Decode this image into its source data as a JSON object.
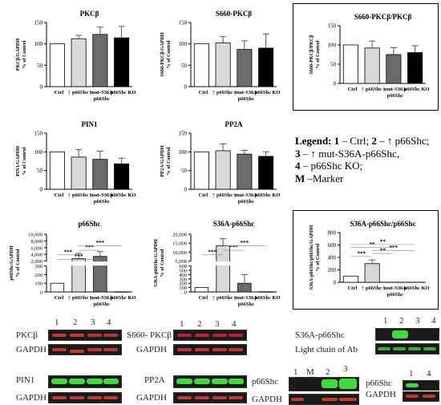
{
  "chart_data": [
    {
      "type": "bar",
      "title": "PKCβ",
      "ylabel": "PKCβ/GAPDH % of Control",
      "categories": [
        "Ctrl",
        "↑ p66Shc",
        "↑ mut-S36A p66Shc",
        "p66Shc KO"
      ],
      "values": [
        100,
        112,
        122,
        114
      ],
      "errors": [
        0,
        8,
        17,
        27
      ],
      "ylim": [
        0,
        150
      ],
      "yticks": [
        0,
        50,
        100,
        150
      ]
    },
    {
      "type": "bar",
      "title": "S660-PKCβ",
      "ylabel": "S660-PKCβ/GAPDH % of Control",
      "categories": [
        "Ctrl",
        "↑ p66Shc",
        "↑ mut-S36A p66Shc",
        "p66Shc KO"
      ],
      "values": [
        100,
        102,
        87,
        90
      ],
      "errors": [
        0,
        15,
        20,
        33
      ],
      "ylim": [
        0,
        150
      ],
      "yticks": [
        0,
        50,
        100,
        150
      ]
    },
    {
      "type": "bar",
      "title": "S660-PKCβ/PKCβ",
      "ylabel": "S660-PKCβ/PKCβ % of Control",
      "categories": [
        "Ctrl",
        "↑ p66Shc",
        "↑ mut-S36A p66Shc",
        "p66Shc KO"
      ],
      "values": [
        100,
        92,
        75,
        80
      ],
      "errors": [
        0,
        18,
        18,
        18
      ],
      "ylim": [
        0,
        150
      ],
      "yticks": [
        0,
        50,
        100,
        150
      ]
    },
    {
      "type": "bar",
      "title": "PIN1",
      "ylabel": "PIN1/GAPDH % of Control",
      "categories": [
        "Ctrl",
        "↑ p66Shc",
        "↑ mut-S36A p66Shc",
        "p66Shc KO"
      ],
      "values": [
        100,
        86,
        80,
        68
      ],
      "errors": [
        0,
        20,
        22,
        15
      ],
      "ylim": [
        0,
        150
      ],
      "yticks": [
        0,
        50,
        100,
        150
      ]
    },
    {
      "type": "bar",
      "title": "PP2A",
      "ylabel": "PP2A/GAPDH % of Control",
      "categories": [
        "Ctrl",
        "↑ p66Shc",
        "↑ mut-S36A p66Shc",
        "p66Shc KO"
      ],
      "values": [
        100,
        103,
        94,
        88
      ],
      "errors": [
        0,
        18,
        10,
        12
      ],
      "ylim": [
        0,
        150
      ],
      "yticks": [
        0,
        50,
        100,
        150
      ]
    },
    {
      "type": "bar",
      "title": "p66Shc",
      "ylabel": "p66Shc/GAPDH % of Control",
      "categories": [
        "Ctrl",
        "↑ p66Shc",
        "↑ mut-S36A p66Shc",
        "p66Shc KO"
      ],
      "values": [
        100,
        2700,
        3400,
        2
      ],
      "errors": [
        0,
        1600,
        1400,
        0
      ],
      "yticks_lower": [
        0,
        100,
        200,
        300
      ],
      "yticks_upper": [
        2000,
        4000,
        6000,
        8000,
        10000
      ],
      "significance": [
        "***",
        "***",
        "***",
        "***"
      ]
    },
    {
      "type": "bar",
      "title": "S36A-p66Shc",
      "ylabel": "S36A-p66Shc/GAPDH % of Control",
      "categories": [
        "Ctrl",
        "↑ p66Shc",
        "↑ mut-S36A p66Shc",
        "p66Shc KO"
      ],
      "values": [
        100,
        13500,
        200,
        5
      ],
      "errors": [
        0,
        4000,
        200,
        0
      ],
      "yticks_lower": [
        0,
        100,
        200,
        300,
        400,
        500,
        600
      ],
      "yticks_upper": [
        5000,
        10000,
        15000,
        20000
      ],
      "significance": [
        "***",
        "***",
        "***"
      ]
    },
    {
      "type": "bar",
      "title": "S36A-p66Shc/p66Shc",
      "ylabel": "S36A-p66Shc/p66Shc/GAPDH % of Control",
      "categories": [
        "Ctrl",
        "↑ p66Shc",
        "↑ mut-S36A p66Shc",
        "p66Shc KO"
      ],
      "values": [
        100,
        300,
        2,
        2
      ],
      "errors": [
        0,
        60,
        0,
        0
      ],
      "ylim": [
        0,
        800
      ],
      "yticks": [
        0,
        200,
        400,
        600,
        800
      ],
      "significance": [
        "***",
        "**",
        "***",
        "**",
        "**"
      ]
    }
  ],
  "legend": {
    "line1": "Legend: ",
    "n1": "1",
    "t1": " – Ctrl;  ",
    "n2": "2",
    "t2": " – ↑ p66Shc;",
    "n3": "3",
    "t3": " – ↑ mut-S36A-p66Shc,",
    "n4": "4",
    "t4": " – p66Shc KO;",
    "nm": "M",
    "tm": " –Marker"
  },
  "blots": {
    "pkcb": {
      "label": "PKCβ",
      "gapdh": "GAPDH",
      "lanes": [
        "1",
        "2",
        "3",
        "4"
      ]
    },
    "s660": {
      "label": "S660- PKCβ",
      "gapdh": "GAPDH",
      "lanes": [
        "1",
        "2",
        "3",
        "4"
      ]
    },
    "s36a": {
      "label": "S36A-p66Shc",
      "gapdh": "Light chain of Ab",
      "lanes": [
        "1",
        "2",
        "3",
        "4"
      ]
    },
    "pin1": {
      "label": "PIN1",
      "gapdh": "GAPDH"
    },
    "pp2a": {
      "label": "PP2A",
      "gapdh": "GAPDH"
    },
    "p66": {
      "label": "p66Shc",
      "gapdh": "GAPDH",
      "lanes": [
        "1",
        "M",
        "2",
        "3"
      ]
    },
    "p66ko": {
      "label": "p66Shc",
      "gapdh": "GAPDH",
      "lanes": [
        "1",
        "4"
      ]
    }
  },
  "colors": {
    "ctrl": "#ffffff",
    "p66": "#d9d9d9",
    "mut": "#6b6b6b",
    "ko": "#000000",
    "blot_bg": "#1a1a1a",
    "green": "#3ddc3a",
    "red": "#c0392b"
  }
}
